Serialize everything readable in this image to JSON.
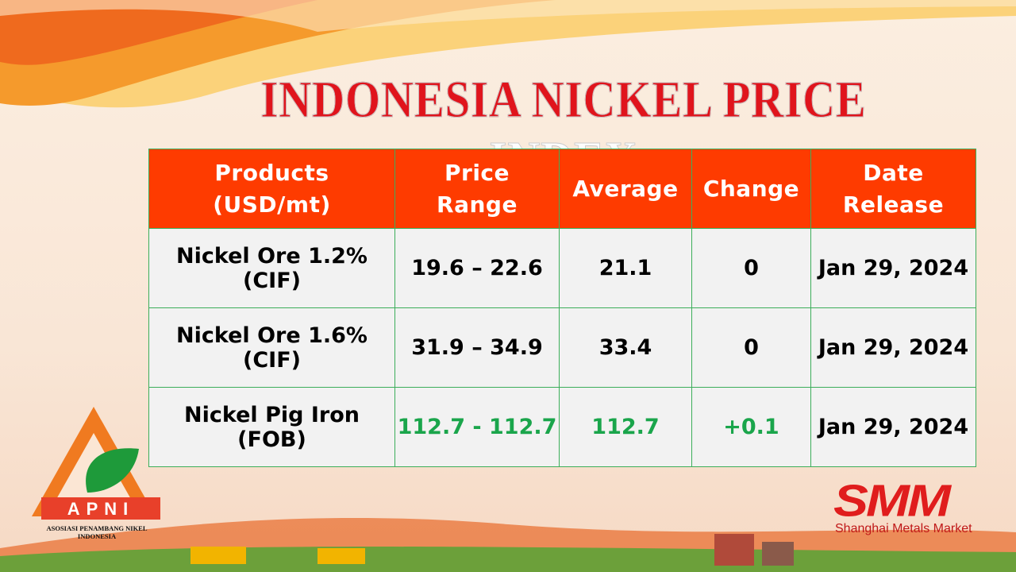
{
  "title": "INDONESIA NICKEL PRICE INDEX",
  "table": {
    "header": [
      [
        "Products",
        "(USD/mt)"
      ],
      [
        "Price",
        "Range"
      ],
      [
        "Average"
      ],
      [
        "Change"
      ],
      [
        "Date",
        "Release"
      ]
    ],
    "rows": [
      [
        "Nickel Ore 1.2% (CIF)",
        "19.6 – 22.6",
        "21.1",
        "0",
        "Jan 29, 2024"
      ],
      [
        "Nickel Ore 1.6% (CIF)",
        "31.9 – 34.9",
        "33.4",
        "0",
        "Jan 29, 2024"
      ],
      [
        "Nickel Pig Iron (FOB)",
        "112.7 - 112.7",
        "112.7",
        "+0.1",
        "Jan 29, 2024"
      ]
    ]
  },
  "logo_left": {
    "name": "APNI",
    "caption": "ASOSIASI PENAMBANG NIKEL INDONESIA"
  },
  "logo_right": {
    "name": "SMM",
    "caption": "Shanghai Metals Market"
  }
}
